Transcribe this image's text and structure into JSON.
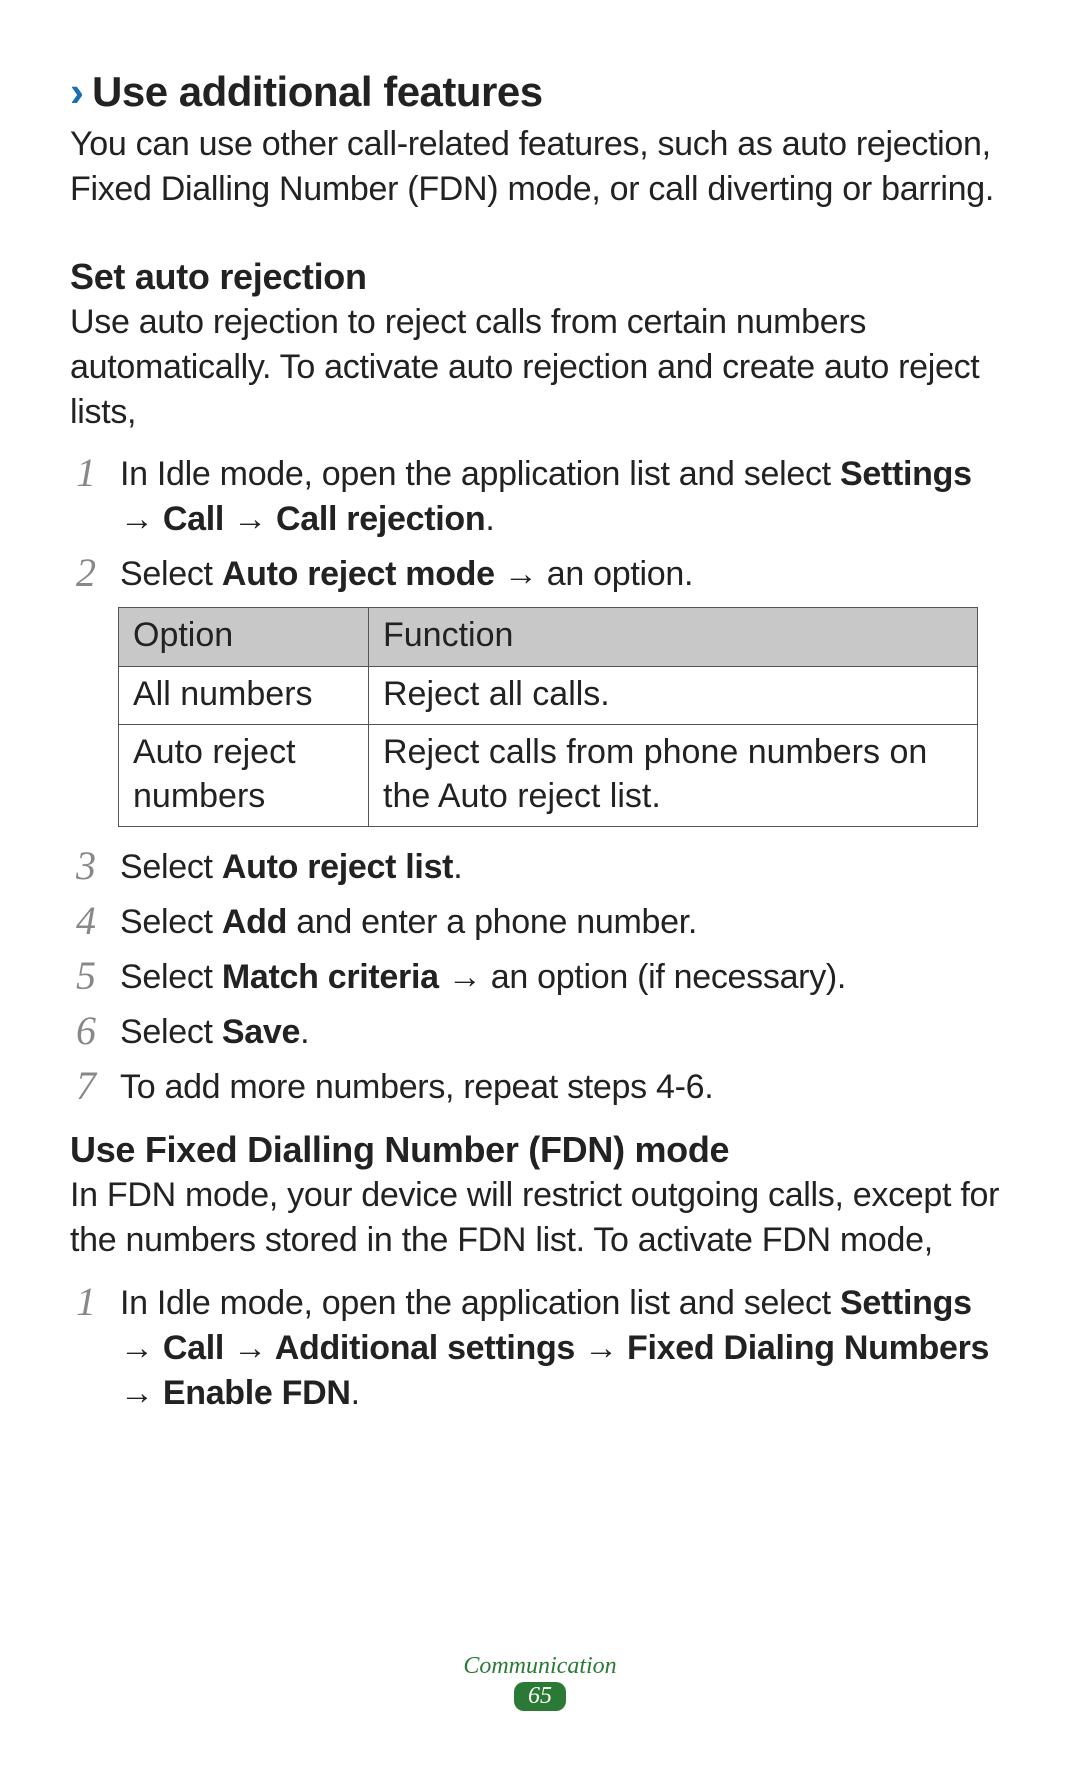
{
  "section": {
    "chevron": "›",
    "title": "Use additional features",
    "intro": "You can use other call-related features, such as auto rejection, Fixed Dialling Number (FDN) mode, or call diverting or barring."
  },
  "auto_rejection": {
    "heading": "Set auto rejection",
    "intro": "Use auto rejection to reject calls from certain numbers automatically. To activate auto rejection and create auto reject lists,",
    "step1_a": "In Idle mode, open the application list and select ",
    "step1_b": "Settings → Call → Call rejection",
    "step1_c": ".",
    "step2_a": "Select ",
    "step2_b": "Auto reject mode",
    "step2_c": " → an option.",
    "step3_a": "Select ",
    "step3_b": "Auto reject list",
    "step3_c": ".",
    "step4_a": "Select ",
    "step4_b": "Add",
    "step4_c": " and enter a phone number.",
    "step5_a": "Select ",
    "step5_b": "Match criteria",
    "step5_c": " → an option (if necessary).",
    "step6_a": "Select ",
    "step6_b": "Save",
    "step6_c": ".",
    "step7": "To add more numbers, repeat steps 4-6."
  },
  "table": {
    "header_option": "Option",
    "header_function": "Function",
    "row1_opt": "All numbers",
    "row1_func": "Reject all calls.",
    "row2_opt": "Auto reject numbers",
    "row2_func": "Reject calls from phone numbers on the Auto reject list."
  },
  "fdn": {
    "heading": "Use Fixed Dialling Number (FDN) mode",
    "intro": "In FDN mode, your device will restrict outgoing calls, except for the numbers stored in the FDN list. To activate FDN mode,",
    "step1_a": "In Idle mode, open the application list and select ",
    "step1_b": "Settings → Call → Additional settings → Fixed Dialing Numbers → Enable FDN",
    "step1_c": "."
  },
  "nums": {
    "n1": "1",
    "n2": "2",
    "n3": "3",
    "n4": "4",
    "n5": "5",
    "n6": "6",
    "n7": "7"
  },
  "footer": {
    "label": "Communication",
    "page": "65"
  },
  "colors": {
    "accent_blue": "#1a6fb0",
    "accent_green": "#2a7a35",
    "table_header_bg": "#c8c8c8",
    "text": "#222222",
    "step_num": "#888888"
  }
}
